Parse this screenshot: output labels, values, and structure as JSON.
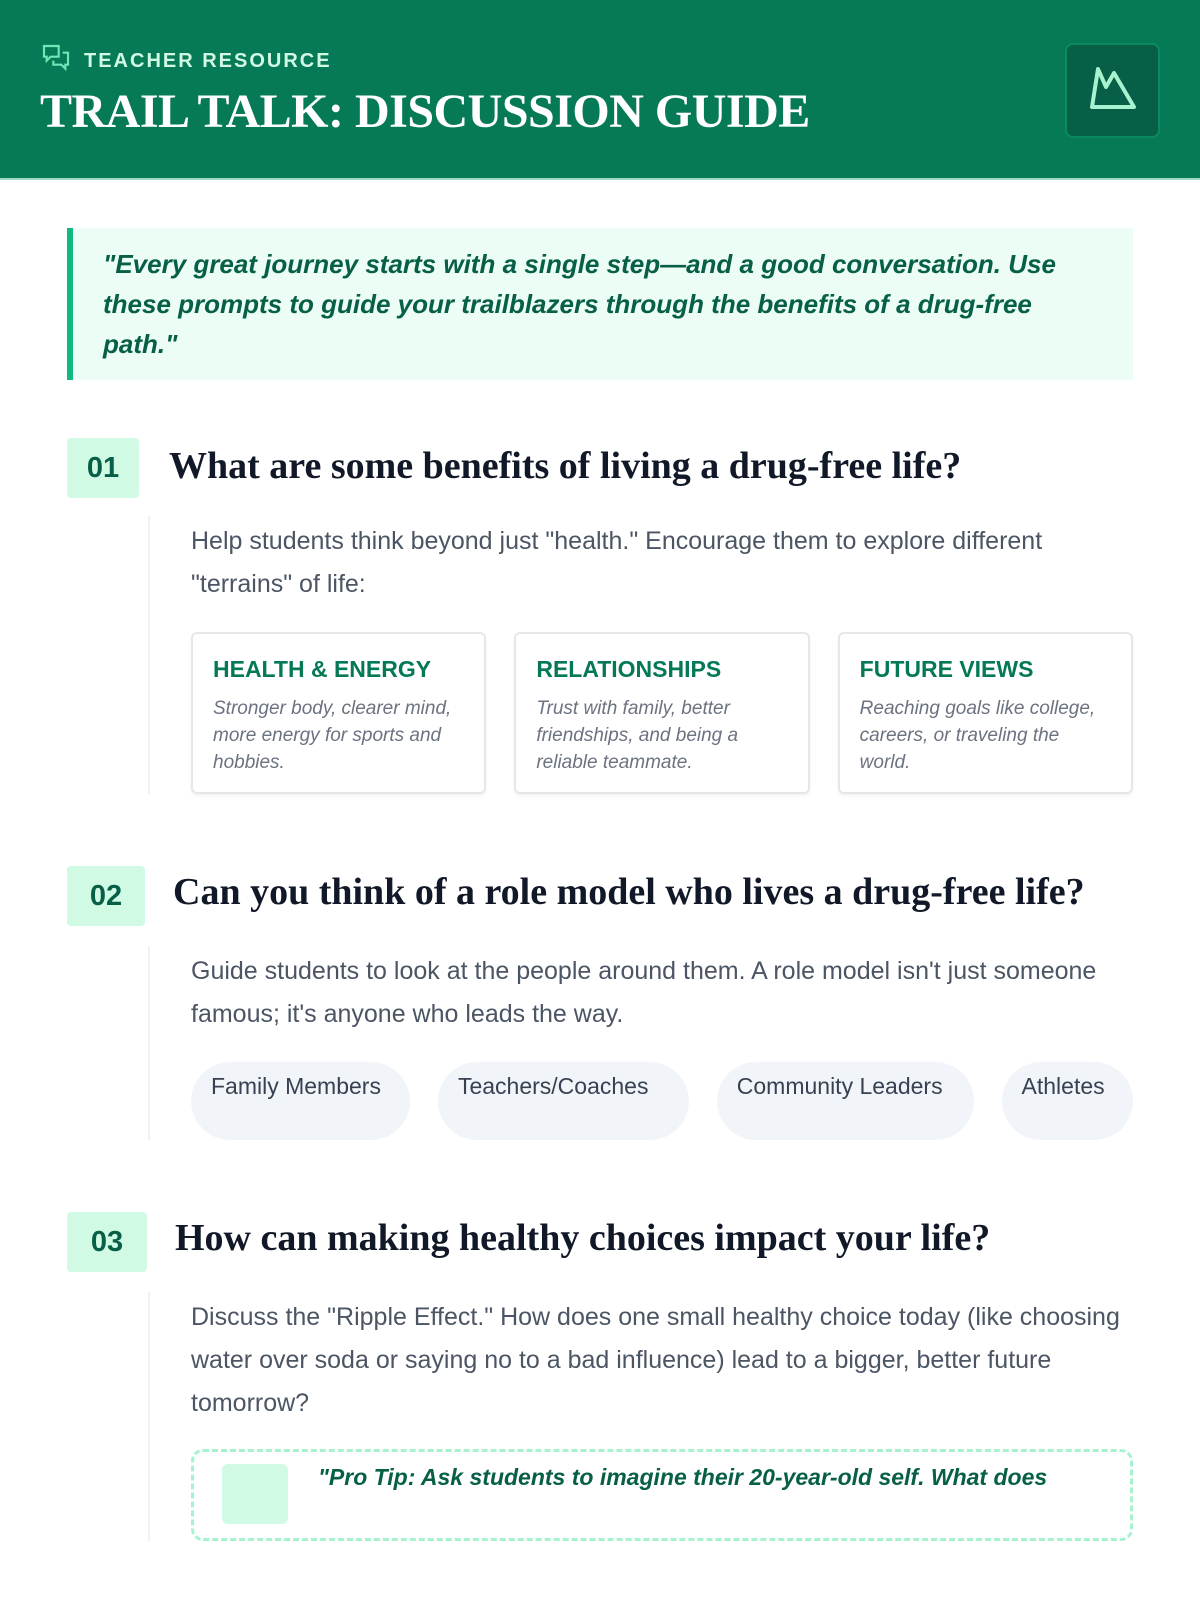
{
  "header": {
    "label": "TEACHER RESOURCE",
    "title": "TRAIL TALK: DISCUSSION GUIDE",
    "label_icon": "chat-bubbles-icon",
    "logo_icon": "mountain-icon"
  },
  "quote": "\"Every great journey starts with a single step—and a good conversation. Use these prompts to guide your trailblazers through the benefits of a drug-free path.\"",
  "questions": [
    {
      "number": "01",
      "title": "What are some benefits of living a drug-free life?",
      "text": "Help students think beyond just \"health.\" Encourage them to explore different \"terrains\" of life:",
      "cards": [
        {
          "title": "HEALTH & ENERGY",
          "text": "Stronger body, clearer mind, more energy for sports and hobbies."
        },
        {
          "title": "RELATIONSHIPS",
          "text": "Trust with family, better friendships, and being a reliable teammate."
        },
        {
          "title": "FUTURE VIEWS",
          "text": "Reaching goals like college, careers, or traveling the world."
        }
      ]
    },
    {
      "number": "02",
      "title": "Can you think of a role model who lives a drug-free life?",
      "text": "Guide students to look at the people around them. A role model isn't just someone famous; it's anyone who leads the way.",
      "pills": [
        "Family Members",
        "Teachers/Coaches",
        "Community Leaders",
        "Athletes"
      ]
    },
    {
      "number": "03",
      "title": "How can making healthy choices impact your life?",
      "text": "Discuss the \"Ripple Effect.\" How does one small healthy choice today (like choosing water over soda or saying no to a bad influence) lead to a bigger, better future tomorrow?",
      "tip": "\"Pro Tip: Ask students to imagine their 20-year-old self. What does"
    }
  ],
  "colors": {
    "brand": "#067a56",
    "accent": "#10b981",
    "tint": "#ecfdf5"
  }
}
